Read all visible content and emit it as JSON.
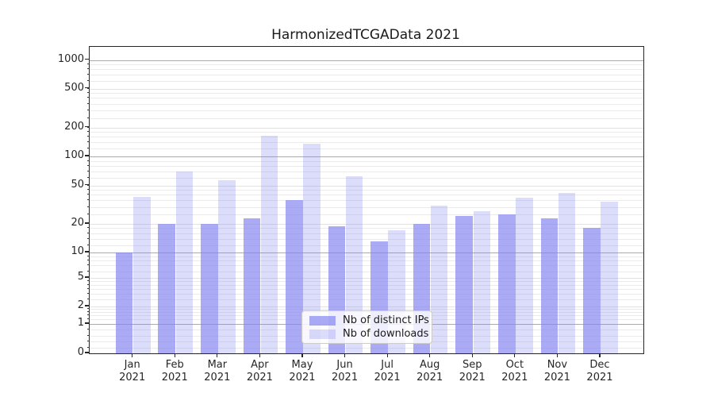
{
  "chart_data": {
    "type": "bar",
    "title": "HarmonizedTCGAData 2021",
    "categories": [
      "Jan 2021",
      "Feb 2021",
      "Mar 2021",
      "Apr 2021",
      "May 2021",
      "Jun 2021",
      "Jul 2021",
      "Aug 2021",
      "Sep 2021",
      "Oct 2021",
      "Nov 2021",
      "Dec 2021"
    ],
    "series": [
      {
        "name": "Nb of distinct IPs",
        "color": "rgba(130,130,240,0.68)",
        "values": [
          10,
          20,
          20,
          23,
          35,
          19,
          13,
          20,
          24,
          25,
          23,
          18
        ]
      },
      {
        "name": "Nb of downloads",
        "color": "rgba(130,130,240,0.28)",
        "values": [
          38,
          70,
          57,
          165,
          135,
          62,
          17,
          31,
          27,
          37,
          42,
          34
        ]
      }
    ],
    "y_axis": {
      "scale": "log-like (compressed below 10, zero baseline)",
      "tick_labels": [
        "1000",
        "500",
        "200",
        "100",
        "50",
        "20",
        "10",
        "5",
        "2",
        "1",
        "0"
      ],
      "ticks": [
        [
          1000,
          16.5
        ],
        [
          500,
          52.5
        ],
        [
          200,
          101.5
        ],
        [
          100,
          138
        ],
        [
          50,
          174.5
        ],
        [
          20,
          223
        ],
        [
          10,
          259
        ],
        [
          5,
          291
        ],
        [
          2,
          327
        ],
        [
          1,
          349
        ],
        [
          0,
          386
        ]
      ],
      "major_grid_values": [
        1,
        10,
        100,
        1000
      ],
      "light_grid_values": [
        2,
        5,
        20,
        50,
        200,
        500
      ],
      "minor_grid_values": [
        0.2,
        0.4,
        0.6,
        0.8,
        1.2,
        1.4,
        1.6,
        1.8,
        2.5,
        3,
        3.5,
        4,
        4.5,
        6,
        7,
        8,
        9,
        12,
        14,
        16,
        18,
        25,
        30,
        35,
        40,
        45,
        60,
        70,
        80,
        90,
        120,
        140,
        160,
        180,
        250,
        300,
        350,
        400,
        450,
        600,
        700,
        800,
        900
      ],
      "range_top": 1258
    },
    "x_axis": {
      "year_line": "2021"
    },
    "legend": {
      "entries": [
        "Nb of distinct IPs",
        "Nb of downloads"
      ],
      "location": "lower center"
    },
    "grid": true
  },
  "colors": {
    "bar_base": "#8282f0",
    "grid_major": "#ababab",
    "grid_light": "#e2e2e2",
    "grid_minor": "#ebebeb",
    "spine": "#262626",
    "text": "#262626",
    "legend_border": "#cccccc",
    "legend_bg": "rgba(255,255,255,0.8)"
  }
}
